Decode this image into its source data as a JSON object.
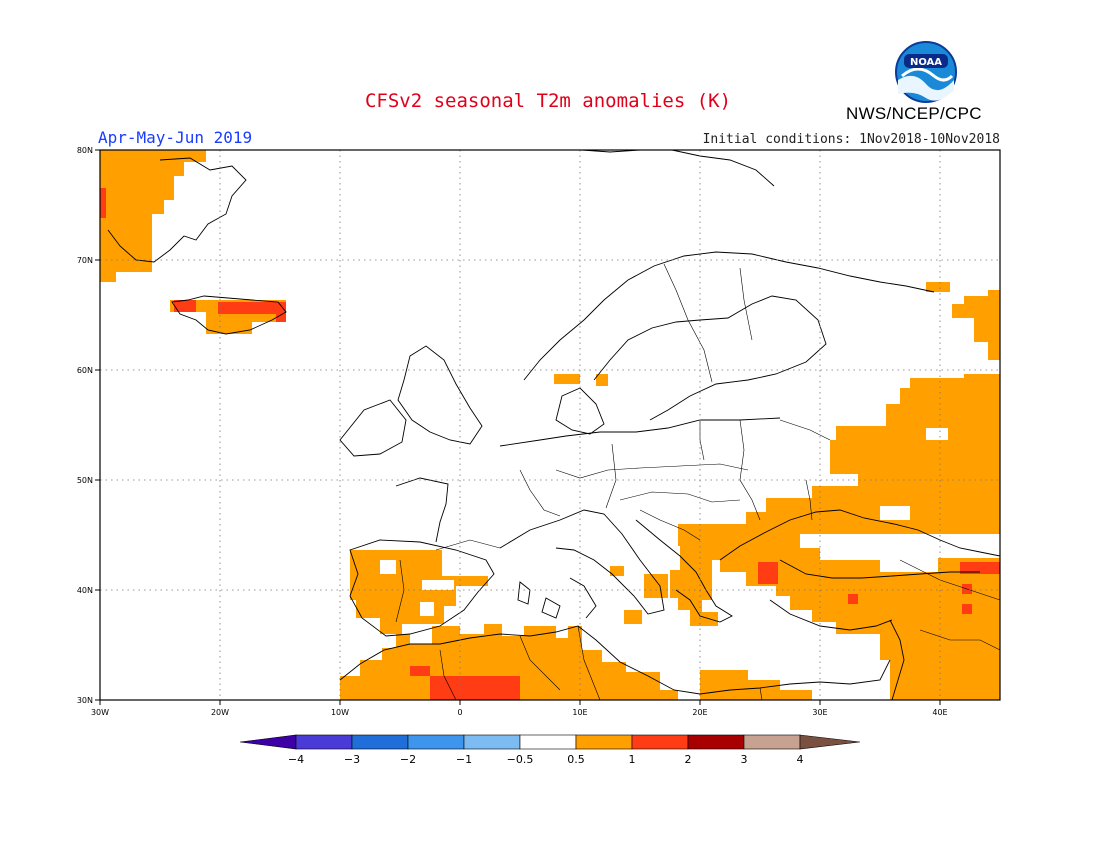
{
  "header": {
    "title": "CFSv2 seasonal T2m anomalies (K)",
    "season": "Apr-May-Jun 2019",
    "initial_conditions": "Initial conditions: 1Nov2018-10Nov2018",
    "organization": "NWS/NCEP/CPC",
    "logo": {
      "icon": "noaa-logo-icon",
      "text": "NOAA"
    }
  },
  "map": {
    "region": "Europe",
    "lon_range": [
      -30,
      45
    ],
    "lat_range": [
      30,
      80
    ],
    "lat_ticks": [
      "80N",
      "70N",
      "60N",
      "50N",
      "40N",
      "30N"
    ],
    "lon_ticks": [
      "30W",
      "20W",
      "10W",
      "0",
      "10E",
      "20E",
      "30E",
      "40E"
    ],
    "grid": true
  },
  "colorbar": {
    "colors": [
      "#3d00a6",
      "#4a3ad6",
      "#1f6ed9",
      "#3d95ee",
      "#7dbcf3",
      "#ffffff",
      "#ff9f00",
      "#ff3c14",
      "#a80000",
      "#c8a290",
      "#7a5040"
    ],
    "labels": [
      "−4",
      "−3",
      "−2",
      "−1",
      "−0.5",
      "0.5",
      "1",
      "2",
      "3",
      "4"
    ]
  },
  "anomaly_colors": {
    "a05_1": "#ff9f00",
    "a1_2": "#ff3c14"
  }
}
